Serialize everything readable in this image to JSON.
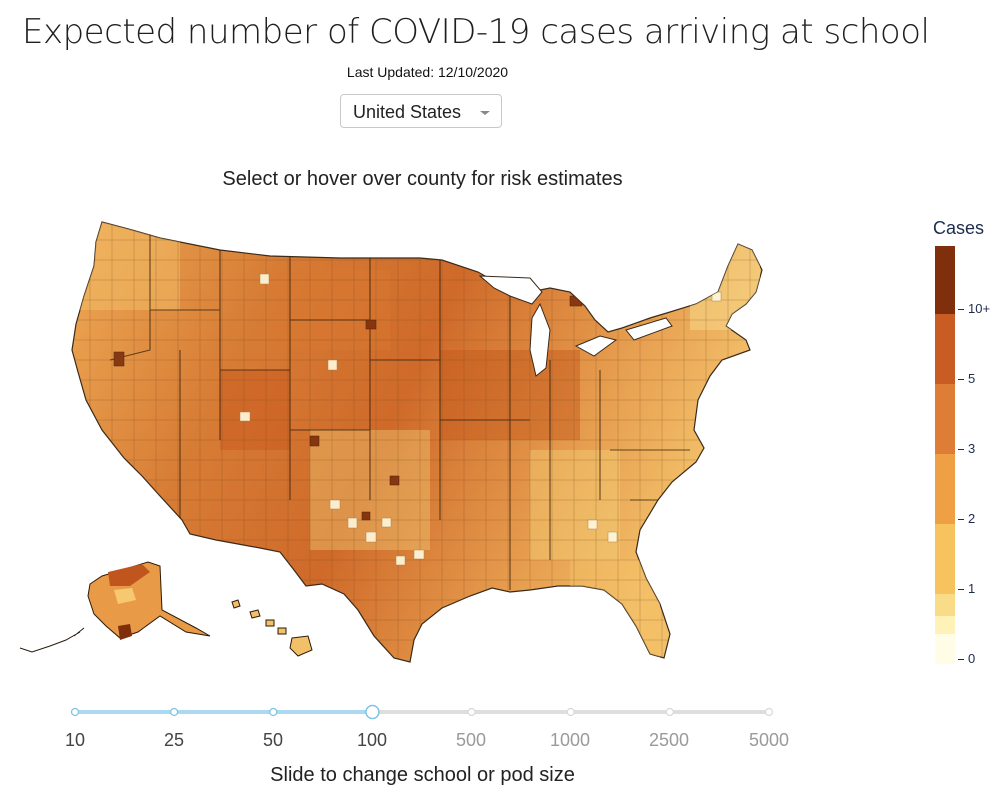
{
  "header": {
    "title": "Expected number of COVID-19 cases arriving at school",
    "last_updated": "Last Updated: 12/10/2020"
  },
  "region_select": {
    "selected": "United States"
  },
  "map": {
    "subtitle": "Select or hover over county for risk estimates",
    "projection": "albers-usa",
    "colors": {
      "lowest": "#fffde6",
      "low": "#f7cd66",
      "mid": "#ef9f45",
      "high": "#d5692a",
      "highest": "#83340f",
      "borders": "#5a3a1a"
    }
  },
  "colorbar": {
    "title": "Cases",
    "ticks": [
      "10+",
      "5",
      "3",
      "2",
      "1",
      "0"
    ],
    "colors": [
      "#fffde6",
      "#fff2b8",
      "#f9dc87",
      "#f7c35f",
      "#efa045",
      "#de7d35",
      "#c95c22",
      "#7f2f0c"
    ]
  },
  "size_slider": {
    "options": [
      "10",
      "25",
      "50",
      "100",
      "500",
      "1000",
      "2500",
      "5000"
    ],
    "selected": "100",
    "caption": "Slide to change school or pod size"
  }
}
